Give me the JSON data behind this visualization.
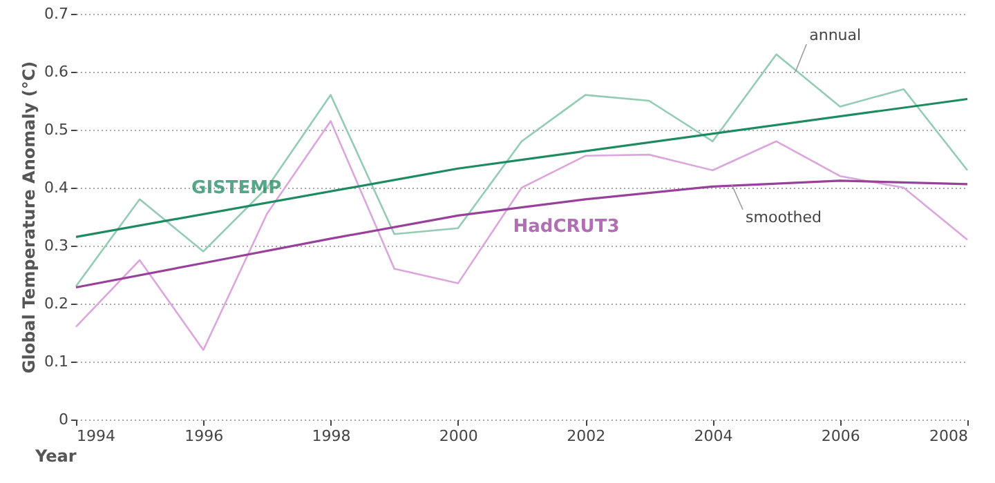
{
  "chart_data": {
    "type": "line",
    "xlabel": "Year",
    "ylabel": "Global Temperature Anomaly (°C)",
    "xlim": [
      1994,
      2008
    ],
    "xticks": [
      1994,
      1996,
      1998,
      2000,
      2002,
      2004,
      2006,
      2008
    ],
    "ylim": [
      0,
      0.7
    ],
    "yticks": [
      0,
      0.1,
      0.2,
      0.3,
      0.4,
      0.5,
      0.6,
      0.7
    ],
    "grid": "y",
    "marker": "none",
    "line_style": "solid",
    "series": [
      {
        "color": "#93cbb3",
        "x": [
          1994,
          1995,
          1996,
          1997,
          1998,
          1999,
          2000,
          2001,
          2002,
          2003,
          2004,
          2005,
          2006,
          2007,
          2008
        ],
        "values": [
          0.23,
          0.38,
          0.29,
          0.4,
          0.56,
          0.32,
          0.33,
          0.48,
          0.56,
          0.55,
          0.48,
          0.63,
          0.54,
          0.57,
          0.43
        ]
      },
      {
        "color": "#dba6dc",
        "x": [
          1994,
          1995,
          1996,
          1997,
          1998,
          1999,
          2000,
          2001,
          2002,
          2003,
          2004,
          2005,
          2006,
          2007,
          2008
        ],
        "values": [
          0.16,
          0.275,
          0.12,
          0.355,
          0.515,
          0.26,
          0.235,
          0.4,
          0.455,
          0.457,
          0.43,
          0.48,
          0.42,
          0.4,
          0.31
        ]
      },
      {
        "name": "GISTEMP",
        "color": "#1d8a5f",
        "x": [
          1994,
          2000,
          2008
        ],
        "values": [
          0.315,
          0.433,
          0.553
        ]
      },
      {
        "name": "HadCRUT3",
        "color": "#98409a",
        "x": [
          1994,
          1996,
          1998,
          2000,
          2002,
          2004,
          2006,
          2008
        ],
        "values": [
          0.228,
          0.27,
          0.312,
          0.352,
          0.38,
          0.402,
          0.412,
          0.406
        ]
      }
    ],
    "annotations": [
      {
        "text": "annual",
        "x": 2005.3,
        "y": 0.6
      },
      {
        "text": "smoothed",
        "x": 2004.3,
        "y": 0.405
      }
    ]
  }
}
